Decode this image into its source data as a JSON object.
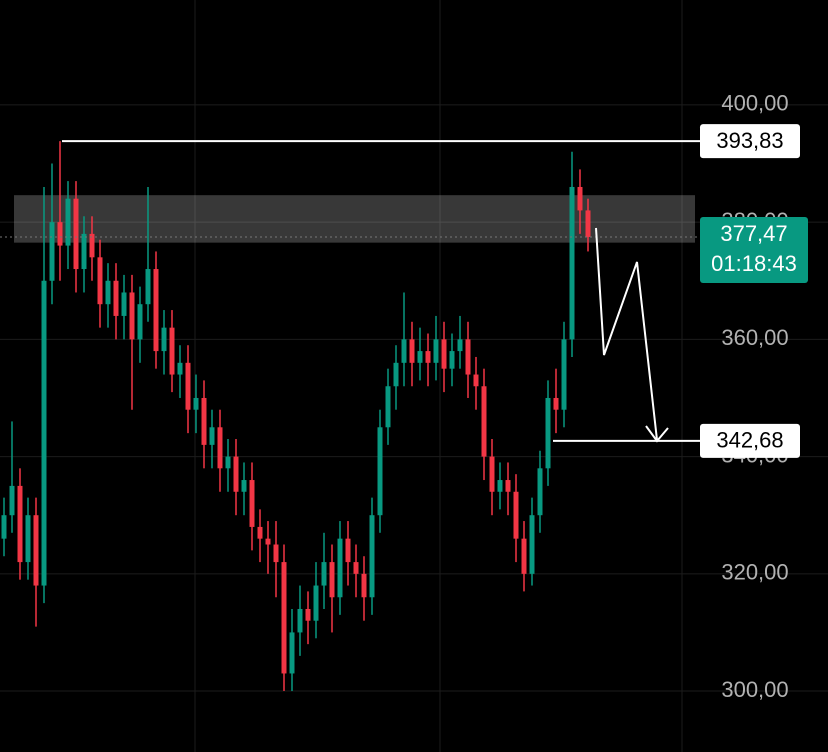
{
  "chart_data": {
    "type": "candlestick",
    "open": [
      326,
      330,
      335,
      322,
      330,
      318,
      370,
      380,
      376,
      384,
      372,
      378,
      374,
      366,
      370,
      364,
      368,
      360,
      366,
      372,
      358,
      362,
      354,
      356,
      348,
      350,
      342,
      345,
      338,
      340,
      334,
      336,
      328,
      326,
      325,
      322,
      303,
      310,
      314,
      312,
      318,
      322,
      316,
      326,
      322,
      320,
      316,
      330,
      345,
      352,
      356,
      360,
      356,
      358,
      356,
      360,
      355,
      358,
      360,
      354,
      352,
      340,
      334,
      336,
      334,
      326,
      320,
      330,
      338,
      350,
      348,
      360,
      386,
      382
    ],
    "high": [
      333,
      346,
      338,
      333,
      333,
      386,
      390,
      393.83,
      387,
      387,
      381,
      381,
      377,
      373,
      373,
      371,
      371,
      369,
      386,
      375,
      365,
      365,
      359,
      359,
      354,
      353,
      348,
      348,
      343,
      343,
      339,
      339,
      331,
      329,
      329,
      325,
      314,
      318,
      317,
      322,
      327,
      325,
      329,
      329,
      325,
      323,
      333,
      348,
      355,
      359,
      368,
      363,
      362,
      361,
      364,
      363,
      361,
      364,
      363,
      357,
      355,
      343,
      339,
      339,
      337,
      329,
      333,
      341,
      353,
      355,
      363,
      392,
      389,
      384
    ],
    "low": [
      323,
      327,
      319,
      319,
      311,
      315,
      366,
      370,
      372,
      368,
      368,
      370,
      362,
      362,
      360,
      360,
      348,
      356,
      363,
      355,
      354,
      351,
      350,
      344,
      344,
      338,
      338,
      334,
      334,
      330,
      330,
      324,
      322,
      320,
      316,
      300,
      300,
      306,
      308,
      309,
      314,
      310,
      313,
      318,
      316,
      312,
      313,
      327,
      342,
      348,
      352,
      352,
      353,
      352,
      353,
      351,
      352,
      355,
      350,
      348,
      336,
      330,
      331,
      330,
      322,
      317,
      318,
      327,
      335,
      344,
      345,
      357,
      378,
      375
    ],
    "close": [
      330,
      335,
      322,
      330,
      318,
      370,
      380,
      376,
      384,
      372,
      378,
      374,
      366,
      370,
      364,
      368,
      360,
      366,
      372,
      358,
      362,
      354,
      356,
      348,
      350,
      342,
      345,
      338,
      340,
      334,
      336,
      328,
      326,
      325,
      322,
      303,
      310,
      314,
      312,
      318,
      322,
      316,
      326,
      322,
      320,
      316,
      330,
      345,
      352,
      356,
      360,
      356,
      358,
      356,
      360,
      355,
      358,
      360,
      354,
      352,
      340,
      334,
      336,
      334,
      326,
      320,
      330,
      338,
      350,
      348,
      360,
      386,
      382,
      377.47
    ],
    "up_color": "#089981",
    "down_color": "#f23645",
    "ylim": [
      289.6,
      417.9
    ],
    "yticks": [
      {
        "value": 300,
        "label": "300,00"
      },
      {
        "value": 320,
        "label": "320,00"
      },
      {
        "value": 340,
        "label": "340,00"
      },
      {
        "value": 360,
        "label": "360,00"
      },
      {
        "value": 380,
        "label": "380,00"
      },
      {
        "value": 400,
        "label": "400,00"
      }
    ],
    "grid": true,
    "zone": [
      376.5,
      384.6
    ],
    "levels": [
      {
        "value": 393.83,
        "label": "393,83"
      },
      {
        "value": 342.68,
        "label": "342,68"
      }
    ],
    "current_price": {
      "value": 377.47,
      "label": "377,47",
      "countdown": "01:18:43"
    }
  }
}
